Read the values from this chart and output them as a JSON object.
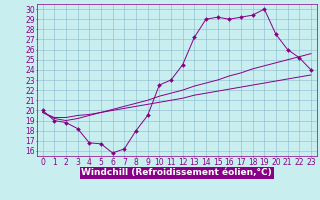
{
  "bg_color": "#c8eef0",
  "plot_bg_color": "#c8eef0",
  "grid_color": "#88bbcc",
  "line_color": "#880088",
  "xlabel": "Windchill (Refroidissement éolien,°C)",
  "xlabel_fontsize": 6.5,
  "tick_fontsize": 5.5,
  "ylabel_ticks": [
    16,
    17,
    18,
    19,
    20,
    21,
    22,
    23,
    24,
    25,
    26,
    27,
    28,
    29,
    30
  ],
  "xlim": [
    -0.5,
    23.5
  ],
  "ylim": [
    15.5,
    30.5
  ],
  "xticks": [
    0,
    1,
    2,
    3,
    4,
    5,
    6,
    7,
    8,
    9,
    10,
    11,
    12,
    13,
    14,
    15,
    16,
    17,
    18,
    19,
    20,
    21,
    22,
    23
  ],
  "series1_x": [
    0,
    1,
    2,
    3,
    4,
    5,
    6,
    7,
    8,
    9,
    10,
    11,
    12,
    13,
    14,
    15,
    16,
    17,
    18,
    19,
    20,
    21,
    22,
    23
  ],
  "series1_y": [
    20.0,
    19.0,
    18.8,
    18.2,
    16.8,
    16.7,
    15.8,
    16.2,
    18.0,
    19.5,
    22.5,
    23.0,
    24.5,
    27.2,
    29.0,
    29.2,
    29.0,
    29.2,
    29.4,
    30.0,
    27.5,
    26.0,
    25.2,
    24.0
  ],
  "series2_x": [
    0,
    1,
    2,
    3,
    4,
    5,
    6,
    7,
    8,
    9,
    10,
    11,
    12,
    13,
    14,
    15,
    16,
    17,
    18,
    19,
    20,
    21,
    22,
    23
  ],
  "series2_y": [
    19.8,
    19.3,
    19.3,
    19.5,
    19.6,
    19.8,
    20.0,
    20.2,
    20.4,
    20.6,
    20.8,
    21.0,
    21.2,
    21.5,
    21.7,
    21.9,
    22.1,
    22.3,
    22.5,
    22.7,
    22.9,
    23.1,
    23.3,
    23.5
  ],
  "series3_x": [
    0,
    1,
    2,
    3,
    4,
    5,
    6,
    7,
    8,
    9,
    10,
    11,
    12,
    13,
    14,
    15,
    16,
    17,
    18,
    19,
    20,
    21,
    22,
    23
  ],
  "series3_y": [
    19.8,
    19.2,
    19.0,
    19.2,
    19.5,
    19.8,
    20.1,
    20.4,
    20.7,
    21.0,
    21.4,
    21.7,
    22.0,
    22.4,
    22.7,
    23.0,
    23.4,
    23.7,
    24.1,
    24.4,
    24.7,
    25.0,
    25.3,
    25.6
  ],
  "bottom_bar_color": "#880088",
  "bottom_text_color": "#ffffff"
}
